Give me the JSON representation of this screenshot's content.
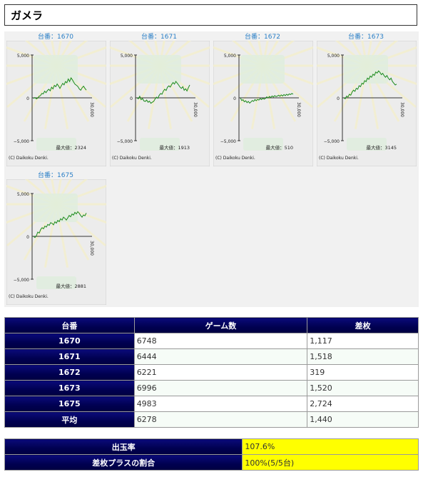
{
  "page_title": "ガメラ",
  "graphs": [
    {
      "link": "台番：1670",
      "max_label": "最大値：2324",
      "series": [
        -80,
        40,
        -120,
        -40,
        180,
        260,
        520,
        460,
        780,
        600,
        860,
        1000,
        820,
        1240,
        1040,
        1460,
        1300,
        1620,
        1380,
        1100,
        1400,
        1680,
        1520,
        1900,
        1760,
        2200,
        1900,
        2324,
        2100,
        1800,
        1560,
        1460,
        1300,
        1020,
        880,
        1180,
        1360,
        1100,
        900
      ]
    },
    {
      "link": "台番：1671",
      "max_label": "最大値：1913",
      "series": [
        0,
        -120,
        180,
        -220,
        -80,
        -360,
        -420,
        -260,
        -520,
        -380,
        -640,
        -520,
        -420,
        -160,
        80,
        -60,
        300,
        500,
        420,
        780,
        1000,
        860,
        1240,
        1400,
        1260,
        1560,
        1780,
        1600,
        1913,
        1700,
        1500,
        1240,
        1100,
        1300,
        880,
        1060,
        800,
        1180,
        1500
      ]
    },
    {
      "link": "台番：1672",
      "max_label": "最大値：510",
      "series": [
        0,
        -320,
        -220,
        -460,
        -340,
        -560,
        -420,
        -620,
        -480,
        -320,
        -420,
        -200,
        -340,
        -180,
        -260,
        -80,
        -200,
        -40,
        -160,
        -60,
        120,
        -20,
        160,
        40,
        220,
        100,
        260,
        140,
        200,
        300,
        180,
        340,
        220,
        380,
        260,
        420,
        300,
        460,
        380,
        510,
        420
      ]
    },
    {
      "link": "台番：1673",
      "max_label": "最大値：3145",
      "series": [
        0,
        -120,
        200,
        100,
        420,
        300,
        680,
        900,
        760,
        1120,
        1000,
        1420,
        1300,
        1700,
        1600,
        2000,
        1880,
        2300,
        2160,
        2540,
        2400,
        2760,
        2620,
        3020,
        2880,
        3145,
        2980,
        2700,
        2860,
        2580,
        2400,
        2600,
        2300,
        2100,
        2300,
        1900,
        1700,
        1500,
        1600
      ]
    },
    {
      "link": "台番：1675",
      "max_label": "最大値：2881",
      "series": [
        0,
        -140,
        80,
        500,
        380,
        800,
        1020,
        880,
        1200,
        1080,
        1400,
        1280,
        1600,
        1520,
        1340,
        1700,
        1540,
        1860,
        1720,
        2060,
        1900,
        2240,
        2100,
        1900,
        2160,
        2440,
        2280,
        2620,
        2480,
        2800,
        2620,
        2881,
        2700,
        2440,
        2240,
        2500,
        2400,
        2720
      ]
    }
  ],
  "graph_common": {
    "y_top_label": "5,000",
    "y_bottom_label": "−5,000",
    "x_label": "30,000",
    "zero_label": "0",
    "copyright": "(C) Daikoku Denki."
  },
  "table": {
    "headers": [
      "台番",
      "ゲーム数",
      "差枚"
    ],
    "rows": [
      {
        "machine": "1670",
        "games": "6748",
        "diff": "1,117"
      },
      {
        "machine": "1671",
        "games": "6444",
        "diff": "1,518"
      },
      {
        "machine": "1672",
        "games": "6221",
        "diff": "319"
      },
      {
        "machine": "1673",
        "games": "6996",
        "diff": "1,520"
      },
      {
        "machine": "1675",
        "games": "4983",
        "diff": "2,724"
      },
      {
        "machine": "平均",
        "games": "6278",
        "diff": "1,440"
      }
    ]
  },
  "summary": {
    "payout_label": "出玉率",
    "payout_value": "107.6%",
    "plus_label": "差枚プラスの割合",
    "plus_value": "100%(5/5台)"
  },
  "colors": {
    "line": "#1a8a1a",
    "header_bg": "#000050",
    "highlight": "#ffff00",
    "link": "#2a7fc7"
  }
}
